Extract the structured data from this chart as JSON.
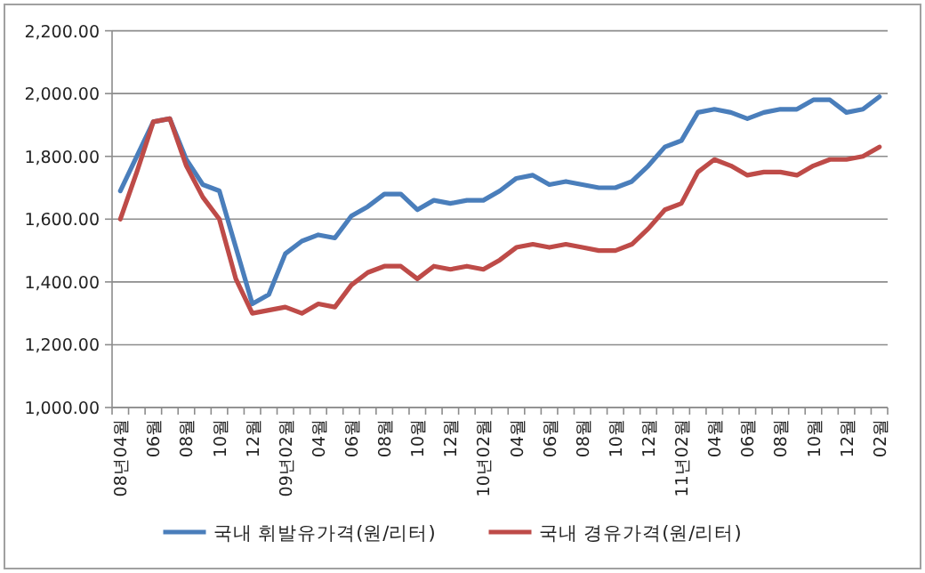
{
  "chart_data": {
    "type": "line",
    "categories": [
      "08년04월",
      null,
      "06월",
      null,
      "08월",
      null,
      "10월",
      null,
      "12월",
      null,
      "09년02월",
      null,
      "04월",
      null,
      "06월",
      null,
      "08월",
      null,
      "10월",
      null,
      "12월",
      null,
      "10년02월",
      null,
      "04월",
      null,
      "06월",
      null,
      "08월",
      null,
      "10월",
      null,
      "12월",
      null,
      "11년02월",
      null,
      "04월",
      null,
      "06월",
      null,
      "08월",
      null,
      "10월",
      null,
      "12월",
      null,
      "02월"
    ],
    "series": [
      {
        "name": "국내 휘발유가격(원/리터)",
        "color": "#4a7ebb",
        "values": [
          1690,
          1800,
          1910,
          1920,
          1790,
          1710,
          1690,
          1510,
          1330,
          1360,
          1490,
          1530,
          1550,
          1540,
          1610,
          1640,
          1680,
          1680,
          1630,
          1660,
          1650,
          1660,
          1660,
          1690,
          1730,
          1740,
          1710,
          1720,
          1710,
          1700,
          1700,
          1720,
          1770,
          1830,
          1850,
          1940,
          1950,
          1940,
          1920,
          1940,
          1950,
          1950,
          1980,
          1980,
          1940,
          1950,
          1990
        ]
      },
      {
        "name": "국내 경유가격(원/리터)",
        "color": "#be4b48",
        "values": [
          1600,
          1750,
          1910,
          1920,
          1770,
          1670,
          1600,
          1410,
          1300,
          1310,
          1320,
          1300,
          1330,
          1320,
          1390,
          1430,
          1450,
          1450,
          1410,
          1450,
          1440,
          1450,
          1440,
          1470,
          1510,
          1520,
          1510,
          1520,
          1510,
          1500,
          1500,
          1520,
          1570,
          1630,
          1650,
          1750,
          1790,
          1770,
          1740,
          1750,
          1750,
          1740,
          1770,
          1790,
          1790,
          1800,
          1830
        ]
      }
    ],
    "ylim": [
      1000,
      2200
    ],
    "yticks": [
      {
        "value": 1000,
        "label": "1,000.00"
      },
      {
        "value": 1200,
        "label": "1,200.00"
      },
      {
        "value": 1400,
        "label": "1,400.00"
      },
      {
        "value": 1600,
        "label": "1,600.00"
      },
      {
        "value": 1800,
        "label": "1,800.00"
      },
      {
        "value": 2000,
        "label": "2,000.00"
      },
      {
        "value": 2200,
        "label": "2,200.00"
      }
    ],
    "grid": "y",
    "legend": "bottom",
    "marker": "none",
    "line_style": "solid"
  }
}
